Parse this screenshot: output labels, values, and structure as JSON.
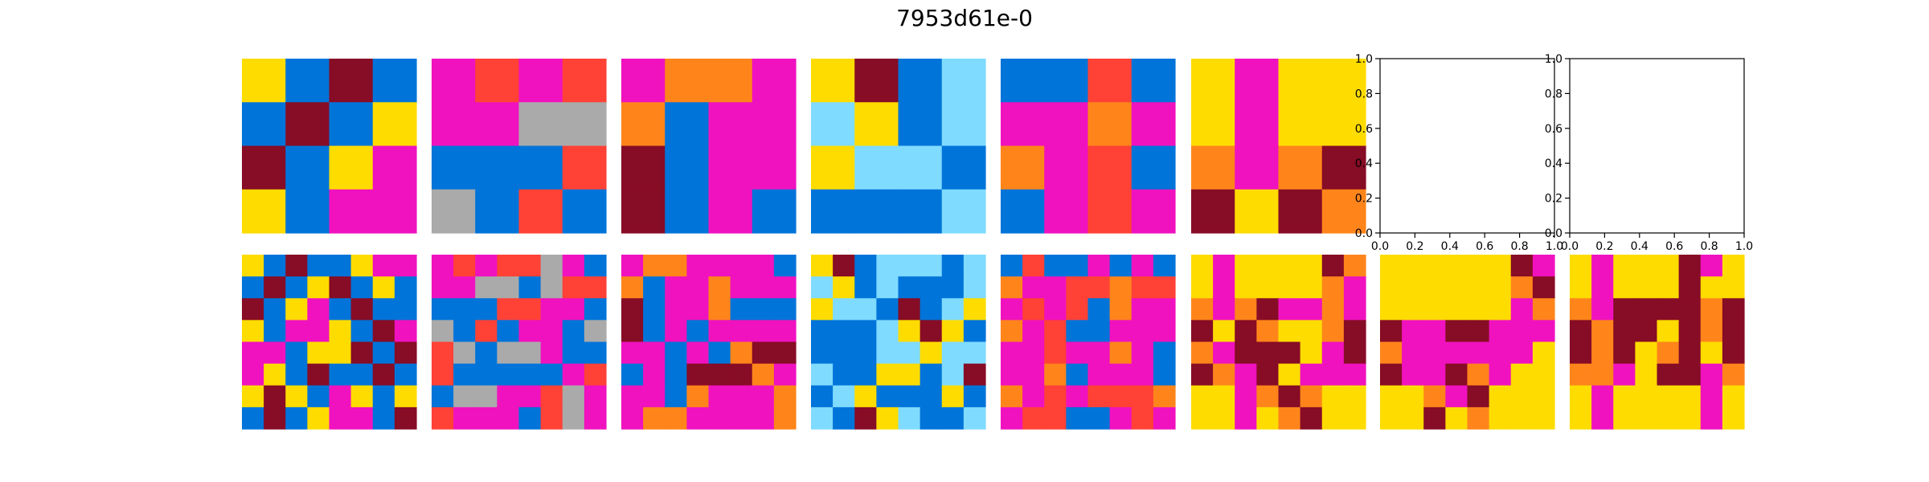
{
  "figure": {
    "title": "7953d61e-0"
  },
  "palette": {
    "0": "#000000",
    "1": "#0074D9",
    "2": "#FF4136",
    "3": "#2ECC40",
    "4": "#FFDC00",
    "5": "#AAAAAA",
    "6": "#F012BE",
    "7": "#FF851B",
    "8": "#7FDBFF",
    "9": "#870C25"
  },
  "chart_data": [
    {
      "type": "heatmap",
      "row": 0,
      "col": 0,
      "grid": [
        [
          4,
          1,
          9,
          1
        ],
        [
          1,
          9,
          1,
          4
        ],
        [
          9,
          1,
          4,
          6
        ],
        [
          4,
          1,
          6,
          6
        ]
      ]
    },
    {
      "type": "heatmap",
      "row": 0,
      "col": 1,
      "grid": [
        [
          6,
          2,
          6,
          2
        ],
        [
          6,
          6,
          5,
          5
        ],
        [
          1,
          1,
          1,
          2
        ],
        [
          5,
          1,
          2,
          1
        ]
      ]
    },
    {
      "type": "heatmap",
      "row": 0,
      "col": 2,
      "grid": [
        [
          6,
          7,
          7,
          6
        ],
        [
          7,
          1,
          6,
          6
        ],
        [
          9,
          1,
          6,
          6
        ],
        [
          9,
          1,
          6,
          1
        ]
      ]
    },
    {
      "type": "heatmap",
      "row": 0,
      "col": 3,
      "grid": [
        [
          4,
          9,
          1,
          8
        ],
        [
          8,
          4,
          1,
          8
        ],
        [
          4,
          8,
          8,
          1
        ],
        [
          1,
          1,
          1,
          8
        ]
      ]
    },
    {
      "type": "heatmap",
      "row": 0,
      "col": 4,
      "grid": [
        [
          1,
          1,
          2,
          1
        ],
        [
          6,
          6,
          7,
          6
        ],
        [
          7,
          6,
          2,
          1
        ],
        [
          1,
          6,
          2,
          6
        ]
      ]
    },
    {
      "type": "heatmap",
      "row": 0,
      "col": 5,
      "grid": [
        [
          4,
          6,
          4,
          4
        ],
        [
          4,
          6,
          4,
          4
        ],
        [
          7,
          6,
          7,
          9
        ],
        [
          9,
          4,
          9,
          7
        ]
      ]
    },
    {
      "type": "empty-axes",
      "row": 0,
      "col": 6,
      "xlim": [
        0,
        1
      ],
      "ylim": [
        0,
        1
      ],
      "xticks": [
        "0.0",
        "0.2",
        "0.4",
        "0.6",
        "0.8",
        "1.0"
      ],
      "yticks": [
        "0.0",
        "0.2",
        "0.4",
        "0.6",
        "0.8",
        "1.0"
      ]
    },
    {
      "type": "empty-axes",
      "row": 0,
      "col": 7,
      "xlim": [
        0,
        1
      ],
      "ylim": [
        0,
        1
      ],
      "xticks": [
        "0.0",
        "0.2",
        "0.4",
        "0.6",
        "0.8",
        "1.0"
      ],
      "yticks": [
        "0.0",
        "0.2",
        "0.4",
        "0.6",
        "0.8",
        "1.0"
      ]
    },
    {
      "type": "heatmap",
      "row": 1,
      "col": 0,
      "grid": [
        [
          4,
          1,
          9,
          1,
          1,
          4,
          6,
          6
        ],
        [
          1,
          9,
          1,
          4,
          9,
          1,
          4,
          1
        ],
        [
          9,
          1,
          4,
          6,
          1,
          9,
          1,
          1
        ],
        [
          4,
          1,
          6,
          6,
          4,
          1,
          9,
          6
        ],
        [
          6,
          6,
          1,
          4,
          4,
          9,
          1,
          9
        ],
        [
          6,
          4,
          1,
          9,
          1,
          1,
          9,
          1
        ],
        [
          4,
          9,
          4,
          1,
          6,
          4,
          1,
          4
        ],
        [
          1,
          9,
          1,
          4,
          6,
          6,
          1,
          9
        ]
      ]
    },
    {
      "type": "heatmap",
      "row": 1,
      "col": 1,
      "grid": [
        [
          6,
          2,
          6,
          2,
          2,
          5,
          6,
          1
        ],
        [
          6,
          6,
          5,
          5,
          1,
          5,
          2,
          2
        ],
        [
          1,
          1,
          1,
          2,
          2,
          6,
          6,
          1
        ],
        [
          5,
          1,
          2,
          1,
          6,
          6,
          1,
          5
        ],
        [
          2,
          5,
          1,
          5,
          5,
          6,
          1,
          1
        ],
        [
          2,
          1,
          1,
          1,
          1,
          1,
          6,
          2
        ],
        [
          1,
          5,
          5,
          6,
          6,
          2,
          5,
          6
        ],
        [
          2,
          6,
          6,
          6,
          1,
          2,
          5,
          6
        ]
      ]
    },
    {
      "type": "heatmap",
      "row": 1,
      "col": 2,
      "grid": [
        [
          6,
          7,
          7,
          6,
          6,
          6,
          6,
          1
        ],
        [
          7,
          1,
          6,
          6,
          7,
          6,
          6,
          6
        ],
        [
          9,
          1,
          6,
          6,
          7,
          1,
          1,
          1
        ],
        [
          9,
          1,
          6,
          1,
          6,
          6,
          6,
          6
        ],
        [
          6,
          6,
          1,
          6,
          1,
          7,
          9,
          9
        ],
        [
          1,
          6,
          1,
          9,
          9,
          9,
          7,
          6
        ],
        [
          6,
          6,
          1,
          7,
          6,
          6,
          6,
          7
        ],
        [
          6,
          7,
          7,
          6,
          6,
          6,
          6,
          7
        ]
      ]
    },
    {
      "type": "heatmap",
      "row": 1,
      "col": 3,
      "grid": [
        [
          4,
          9,
          1,
          8,
          8,
          8,
          1,
          8
        ],
        [
          8,
          4,
          1,
          8,
          1,
          1,
          1,
          8
        ],
        [
          4,
          8,
          8,
          1,
          9,
          1,
          8,
          4
        ],
        [
          1,
          1,
          1,
          8,
          4,
          9,
          4,
          1
        ],
        [
          1,
          1,
          1,
          8,
          8,
          4,
          8,
          8
        ],
        [
          8,
          1,
          1,
          4,
          4,
          1,
          8,
          9
        ],
        [
          1,
          8,
          4,
          1,
          1,
          1,
          4,
          1
        ],
        [
          8,
          1,
          9,
          4,
          8,
          1,
          1,
          8
        ]
      ]
    },
    {
      "type": "heatmap",
      "row": 1,
      "col": 4,
      "grid": [
        [
          1,
          2,
          1,
          1,
          6,
          1,
          6,
          1
        ],
        [
          7,
          6,
          6,
          2,
          2,
          7,
          2,
          2
        ],
        [
          6,
          2,
          6,
          2,
          1,
          7,
          6,
          6
        ],
        [
          7,
          6,
          2,
          1,
          1,
          6,
          6,
          6
        ],
        [
          6,
          6,
          2,
          6,
          6,
          7,
          6,
          1
        ],
        [
          6,
          6,
          7,
          1,
          6,
          6,
          6,
          1
        ],
        [
          7,
          6,
          2,
          6,
          2,
          2,
          2,
          7
        ],
        [
          6,
          2,
          2,
          1,
          1,
          6,
          2,
          6
        ]
      ]
    },
    {
      "type": "heatmap",
      "row": 1,
      "col": 5,
      "grid": [
        [
          4,
          6,
          4,
          4,
          4,
          4,
          9,
          7
        ],
        [
          4,
          6,
          4,
          4,
          4,
          4,
          7,
          6
        ],
        [
          7,
          6,
          7,
          9,
          6,
          6,
          7,
          6
        ],
        [
          9,
          4,
          9,
          7,
          4,
          4,
          7,
          9
        ],
        [
          7,
          6,
          9,
          9,
          9,
          4,
          6,
          9
        ],
        [
          9,
          7,
          6,
          9,
          4,
          6,
          6,
          6
        ],
        [
          4,
          4,
          6,
          7,
          9,
          7,
          4,
          4
        ],
        [
          4,
          4,
          6,
          4,
          7,
          9,
          4,
          4
        ]
      ]
    },
    {
      "type": "heatmap",
      "row": 1,
      "col": 6,
      "grid": [
        [
          4,
          4,
          4,
          4,
          4,
          4,
          9,
          6
        ],
        [
          4,
          4,
          4,
          4,
          4,
          4,
          7,
          9
        ],
        [
          4,
          4,
          4,
          4,
          4,
          4,
          6,
          7
        ],
        [
          9,
          6,
          6,
          9,
          9,
          6,
          6,
          6
        ],
        [
          7,
          6,
          6,
          6,
          6,
          6,
          6,
          4
        ],
        [
          9,
          6,
          6,
          9,
          7,
          6,
          4,
          4
        ],
        [
          4,
          4,
          7,
          6,
          9,
          4,
          4,
          4
        ],
        [
          4,
          4,
          9,
          4,
          7,
          4,
          4,
          4
        ]
      ]
    },
    {
      "type": "heatmap",
      "row": 1,
      "col": 7,
      "grid": [
        [
          4,
          6,
          4,
          4,
          4,
          9,
          6,
          4
        ],
        [
          4,
          6,
          4,
          4,
          4,
          9,
          4,
          4
        ],
        [
          7,
          6,
          9,
          9,
          9,
          9,
          7,
          9
        ],
        [
          9,
          7,
          9,
          9,
          4,
          9,
          7,
          9
        ],
        [
          9,
          7,
          9,
          4,
          7,
          9,
          4,
          9
        ],
        [
          7,
          7,
          6,
          4,
          9,
          9,
          6,
          7
        ],
        [
          4,
          6,
          4,
          4,
          4,
          4,
          6,
          4
        ],
        [
          4,
          6,
          4,
          4,
          4,
          4,
          6,
          4
        ]
      ]
    }
  ]
}
